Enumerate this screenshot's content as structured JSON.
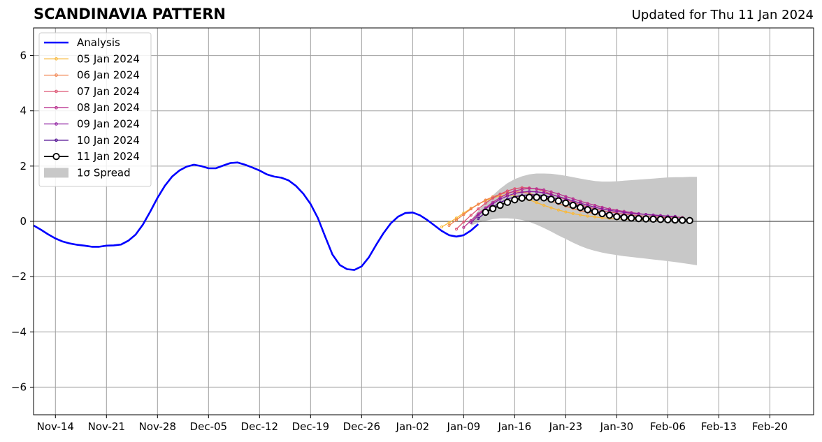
{
  "chart_data": {
    "type": "line",
    "title": "SCANDINAVIA PATTERN",
    "subtitle": "Updated for Thu 11 Jan 2024",
    "xlabel": "",
    "ylabel": "",
    "xlim": [
      "2023-11-11",
      "2024-02-26"
    ],
    "ylim": [
      -7,
      7
    ],
    "y_ticks": [
      -6,
      -4,
      -2,
      0,
      2,
      4,
      6
    ],
    "y_tick_labels": [
      "−6",
      "−4",
      "−2",
      "0",
      "2",
      "4",
      "6"
    ],
    "x_ticks": [
      "2023-11-14",
      "2023-11-21",
      "2023-11-28",
      "2023-12-05",
      "2023-12-12",
      "2023-12-19",
      "2023-12-26",
      "2024-01-02",
      "2024-01-09",
      "2024-01-16",
      "2024-01-23",
      "2024-01-30",
      "2024-02-06",
      "2024-02-13",
      "2024-02-20"
    ],
    "x_tick_labels": [
      "Nov-14",
      "Nov-21",
      "Nov-28",
      "Dec-05",
      "Dec-12",
      "Dec-19",
      "Dec-26",
      "Jan-02",
      "Jan-09",
      "Jan-16",
      "Jan-23",
      "Jan-30",
      "Feb-06",
      "Feb-13",
      "Feb-20"
    ],
    "grid": true,
    "legend_position": "top-left",
    "analysis": {
      "name": "Analysis",
      "color": "#0000ff",
      "start_date": "2023-11-11",
      "values": [
        -0.15,
        -0.3,
        -0.47,
        -0.62,
        -0.73,
        -0.8,
        -0.85,
        -0.88,
        -0.92,
        -0.92,
        -0.88,
        -0.87,
        -0.84,
        -0.7,
        -0.48,
        -0.12,
        0.35,
        0.85,
        1.28,
        1.62,
        1.84,
        1.98,
        2.05,
        2.0,
        1.92,
        1.92,
        2.02,
        2.11,
        2.13,
        2.05,
        1.95,
        1.84,
        1.7,
        1.62,
        1.58,
        1.48,
        1.28,
        1.0,
        0.63,
        0.12,
        -0.55,
        -1.2,
        -1.58,
        -1.73,
        -1.76,
        -1.63,
        -1.3,
        -0.85,
        -0.43,
        -0.07,
        0.17,
        0.3,
        0.32,
        0.22,
        0.05,
        -0.15,
        -0.35,
        -0.5,
        -0.55,
        -0.5,
        -0.33,
        -0.1
      ]
    },
    "forecasts": [
      {
        "name": "05 Jan 2024",
        "color": "#f9b93b",
        "start_date": "2024-01-06",
        "values": [
          -0.2,
          -0.05,
          0.12,
          0.3,
          0.47,
          0.62,
          0.75,
          0.85,
          0.92,
          0.95,
          0.93,
          0.87,
          0.78,
          0.68,
          0.58,
          0.49,
          0.41,
          0.34,
          0.28,
          0.23,
          0.19,
          0.16,
          0.13,
          0.11,
          0.09,
          0.08,
          0.07,
          0.06,
          0.05,
          0.05,
          0.04
        ]
      },
      {
        "name": "06 Jan 2024",
        "color": "#f1814b",
        "start_date": "2024-01-07",
        "values": [
          -0.15,
          0.05,
          0.25,
          0.45,
          0.62,
          0.77,
          0.89,
          0.98,
          1.04,
          1.07,
          1.06,
          1.01,
          0.93,
          0.84,
          0.74,
          0.64,
          0.55,
          0.46,
          0.39,
          0.33,
          0.28,
          0.24,
          0.2,
          0.17,
          0.15,
          0.13,
          0.11,
          0.1,
          0.09,
          0.08,
          0.07
        ]
      },
      {
        "name": "07 Jan 2024",
        "color": "#dc5170",
        "start_date": "2024-01-08",
        "values": [
          -0.28,
          -0.02,
          0.22,
          0.45,
          0.66,
          0.84,
          0.99,
          1.1,
          1.18,
          1.22,
          1.21,
          1.17,
          1.09,
          0.99,
          0.89,
          0.79,
          0.69,
          0.6,
          0.52,
          0.45,
          0.39,
          0.34,
          0.3,
          0.26,
          0.23,
          0.21,
          0.18,
          0.16,
          0.15,
          0.13,
          0.12
        ]
      },
      {
        "name": "08 Jan 2024",
        "color": "#b82d8d",
        "start_date": "2024-01-09",
        "values": [
          -0.22,
          0.03,
          0.27,
          0.49,
          0.69,
          0.86,
          1.0,
          1.1,
          1.16,
          1.19,
          1.18,
          1.14,
          1.07,
          0.99,
          0.9,
          0.82,
          0.73,
          0.65,
          0.58,
          0.51,
          0.45,
          0.4,
          0.36,
          0.32,
          0.28,
          0.25,
          0.22,
          0.2,
          0.18,
          0.16,
          0.14
        ]
      },
      {
        "name": "09 Jan 2024",
        "color": "#8c1a9e",
        "start_date": "2024-01-10",
        "values": [
          -0.05,
          0.22,
          0.45,
          0.64,
          0.8,
          0.92,
          1.01,
          1.06,
          1.08,
          1.07,
          1.03,
          0.97,
          0.9,
          0.82,
          0.74,
          0.66,
          0.58,
          0.51,
          0.45,
          0.4,
          0.36,
          0.32,
          0.29,
          0.27,
          0.25,
          0.23,
          0.21,
          0.19,
          0.18
        ]
      },
      {
        "name": "10 Jan 2024",
        "color": "#4d0a8f",
        "start_date": "2024-01-11",
        "values": [
          0.1,
          0.32,
          0.52,
          0.68,
          0.8,
          0.89,
          0.94,
          0.96,
          0.96,
          0.93,
          0.87,
          0.8,
          0.72,
          0.63,
          0.54,
          0.46,
          0.38,
          0.32,
          0.26,
          0.22,
          0.18,
          0.15,
          0.13,
          0.11,
          0.1,
          0.09,
          0.08,
          0.07,
          0.07
        ]
      },
      {
        "name": "11 Jan 2024",
        "color": "#000000",
        "marker": "open-circle",
        "start_date": "2024-01-12",
        "values": [
          0.33,
          0.46,
          0.58,
          0.69,
          0.78,
          0.84,
          0.87,
          0.87,
          0.85,
          0.8,
          0.74,
          0.66,
          0.58,
          0.5,
          0.42,
          0.35,
          0.28,
          0.22,
          0.17,
          0.14,
          0.12,
          0.1,
          0.09,
          0.08,
          0.07,
          0.06,
          0.05,
          0.04,
          0.03
        ]
      }
    ],
    "spread": {
      "name": "1σ Spread",
      "color": "#c8c8c8",
      "start_date": "2024-01-10",
      "upper": [
        0.05,
        0.38,
        0.68,
        0.94,
        1.18,
        1.38,
        1.53,
        1.63,
        1.7,
        1.73,
        1.73,
        1.72,
        1.69,
        1.65,
        1.6,
        1.55,
        1.5,
        1.46,
        1.44,
        1.44,
        1.45,
        1.47,
        1.49,
        1.51,
        1.53,
        1.55,
        1.57,
        1.59,
        1.6,
        1.6,
        1.61,
        1.61
      ],
      "lower": [
        -0.15,
        -0.05,
        0.02,
        0.08,
        0.11,
        0.11,
        0.09,
        0.05,
        -0.02,
        -0.12,
        -0.24,
        -0.37,
        -0.51,
        -0.64,
        -0.77,
        -0.89,
        -0.99,
        -1.07,
        -1.13,
        -1.18,
        -1.22,
        -1.26,
        -1.29,
        -1.32,
        -1.35,
        -1.38,
        -1.41,
        -1.44,
        -1.47,
        -1.51,
        -1.55,
        -1.59
      ]
    }
  }
}
